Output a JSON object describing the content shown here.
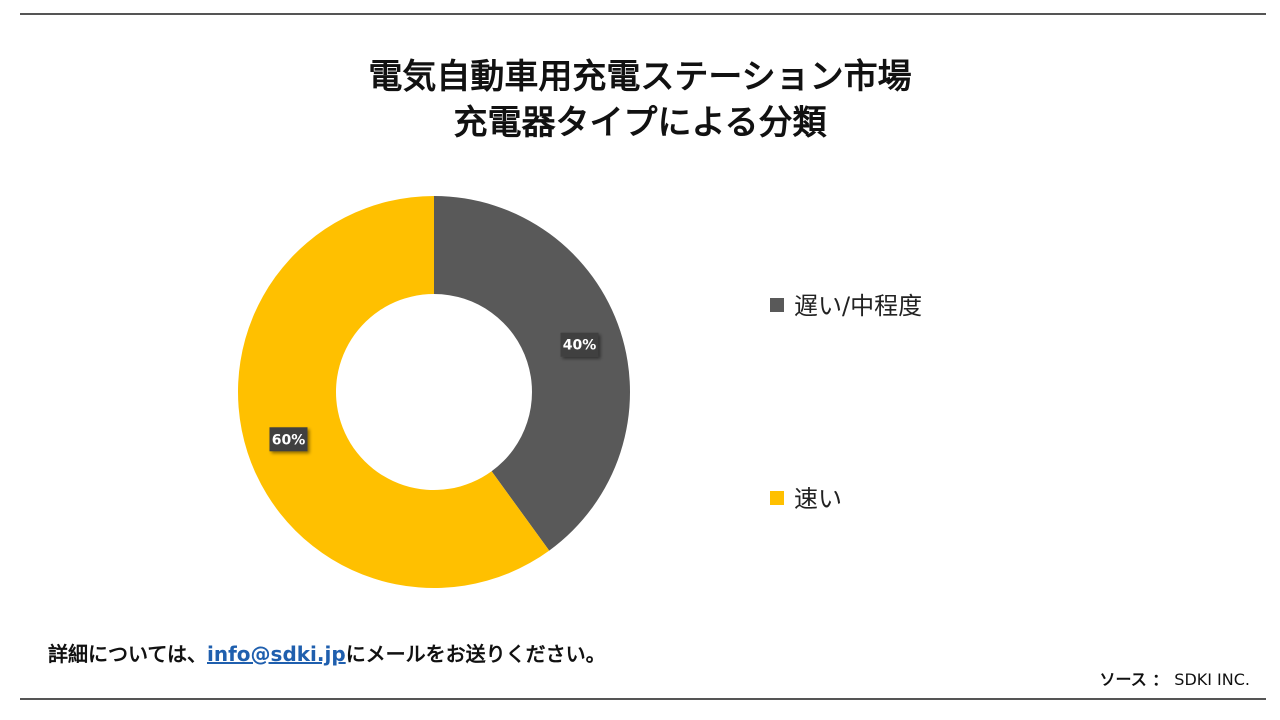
{
  "header": {
    "title_line1": "電気自動車用充電ステーション市場",
    "title_line2": "充電器タイプによる分類"
  },
  "chart_data": {
    "type": "pie",
    "subtype": "donut",
    "title": "電気自動車用充電ステーション市場 充電器タイプによる分類",
    "series": [
      {
        "name": "遅い/中程度",
        "value": 40,
        "label": "40%",
        "color": "#595959"
      },
      {
        "name": "速い",
        "value": 60,
        "label": "60%",
        "color": "#ffc000"
      }
    ],
    "legend_position": "right"
  },
  "footer": {
    "note_prefix": "詳細については、",
    "email": "info@sdki.jp",
    "note_suffix": "にメールをお送りください。",
    "source_label": "ソース ：",
    "source_value": "SDKI INC."
  }
}
